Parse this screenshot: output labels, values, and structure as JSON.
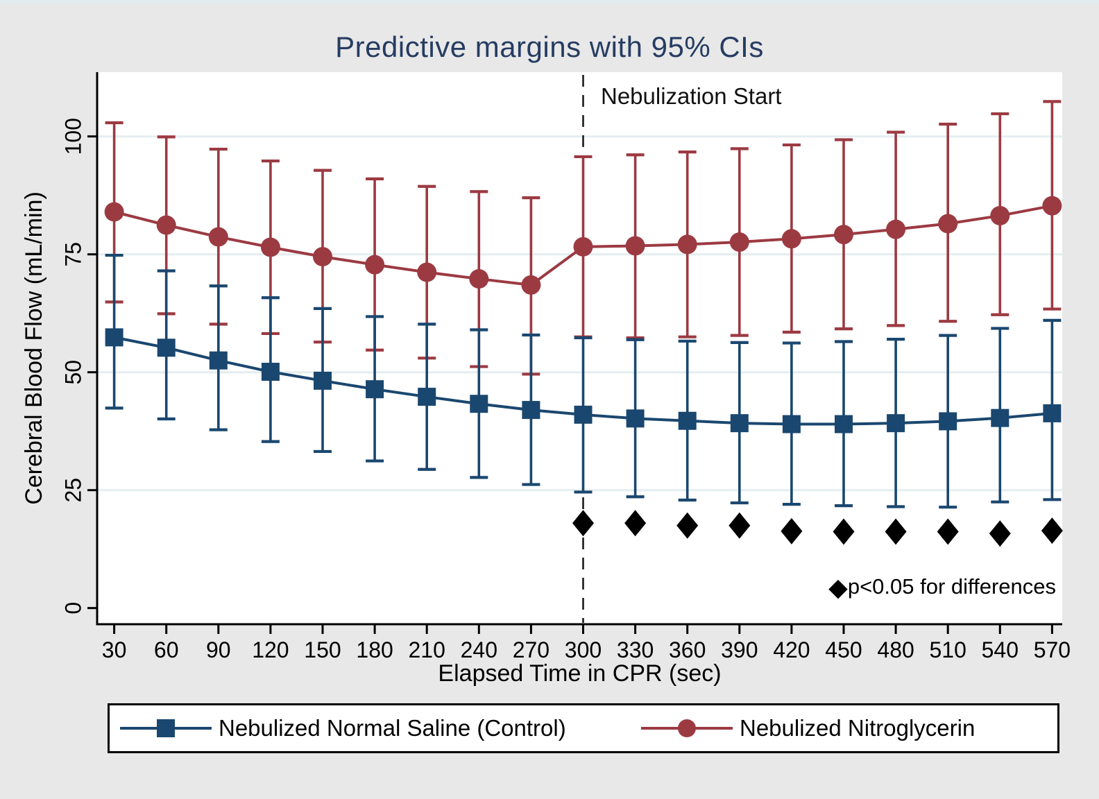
{
  "title": "Predictive margins with 95% CIs",
  "annotations": {
    "nebulization_label": "Nebulization Start",
    "significance_marker": "◆",
    "significance_note": "p<0.05 for differences"
  },
  "colors": {
    "control": "#1a476f",
    "nitroglycerin": "#9c3a42",
    "title_text": "#263c62",
    "gridline": "#e4eef0",
    "figure_bg": "#e8e8e8",
    "plot_bg": "#ffffff",
    "axis": "#000000",
    "diamond": "#000000"
  },
  "chart_data": {
    "type": "line",
    "title": "Predictive margins with 95% CIs",
    "xlabel": "Elapsed Time in CPR (sec)",
    "ylabel": "Cerebral Blood Flow (mL/min)",
    "x": [
      30,
      60,
      90,
      120,
      150,
      180,
      210,
      240,
      270,
      300,
      330,
      360,
      390,
      420,
      450,
      480,
      510,
      540,
      570
    ],
    "yticks": [
      0,
      25,
      50,
      75,
      100
    ],
    "ylim": [
      0,
      110
    ],
    "grid": true,
    "legend_position": "bottom",
    "reference_line_x": 300,
    "series": [
      {
        "name": "Nebulized Normal Saline (Control)",
        "marker": "square",
        "color": "#1a476f",
        "values": [
          57.4,
          55.2,
          52.5,
          50.1,
          48.2,
          46.4,
          44.8,
          43.3,
          42.0,
          41.0,
          40.2,
          39.7,
          39.2,
          39.0,
          39.0,
          39.2,
          39.6,
          40.3,
          41.3
        ],
        "ci_low": [
          42.4,
          40.1,
          37.8,
          35.3,
          33.2,
          31.2,
          29.4,
          27.7,
          26.2,
          24.6,
          23.6,
          22.9,
          22.3,
          22.0,
          21.7,
          21.5,
          21.4,
          22.5,
          23.0
        ],
        "ci_high": [
          74.8,
          71.5,
          68.3,
          65.8,
          63.5,
          61.8,
          60.2,
          59.0,
          57.9,
          57.3,
          56.9,
          56.6,
          56.3,
          56.2,
          56.5,
          57.0,
          57.8,
          59.3,
          61.0
        ]
      },
      {
        "name": "Nebulized Nitroglycerin",
        "marker": "circle",
        "color": "#9c3a42",
        "values": [
          84.0,
          81.2,
          78.7,
          76.5,
          74.5,
          72.8,
          71.2,
          69.8,
          68.5,
          76.6,
          76.8,
          77.1,
          77.6,
          78.3,
          79.2,
          80.3,
          81.5,
          83.2,
          85.3
        ],
        "ci_low": [
          64.9,
          62.4,
          60.2,
          58.2,
          56.4,
          54.7,
          53.0,
          51.2,
          49.6,
          57.5,
          57.3,
          57.5,
          57.8,
          58.5,
          59.2,
          59.9,
          60.8,
          62.2,
          63.4
        ],
        "ci_high": [
          102.9,
          99.9,
          97.3,
          94.8,
          92.8,
          91.0,
          89.4,
          88.3,
          87.0,
          95.7,
          96.1,
          96.7,
          97.4,
          98.2,
          99.3,
          100.9,
          102.6,
          104.8,
          107.4
        ]
      }
    ],
    "significance_x": [
      300,
      330,
      360,
      390,
      420,
      450,
      480,
      510,
      540,
      570
    ],
    "significance_y": [
      18.0,
      18.0,
      17.5,
      17.5,
      16.3,
      16.2,
      16.2,
      16.2,
      15.8,
      16.4
    ]
  },
  "legend": {
    "items": [
      {
        "label": "Nebulized Normal Saline (Control)"
      },
      {
        "label": "Nebulized Nitroglycerin"
      }
    ]
  }
}
